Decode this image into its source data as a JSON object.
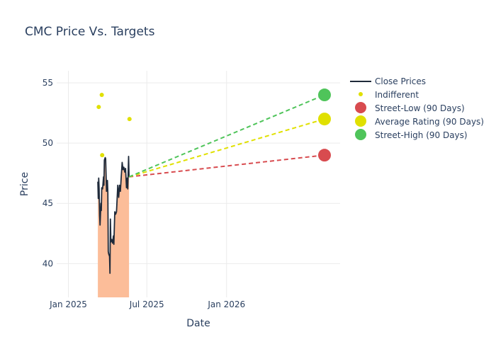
{
  "chart_data": {
    "type": "line",
    "title": "CMC Price Vs. Targets",
    "xlabel": "Date",
    "ylabel": "Price",
    "x_range": [
      "2024-12-05",
      "2026-09-20"
    ],
    "ylim": [
      37.2,
      56.0
    ],
    "x_ticks": [
      {
        "date": "2025-01-01",
        "label": "Jan 2025"
      },
      {
        "date": "2025-07-01",
        "label": "Jul 2025"
      },
      {
        "date": "2026-01-01",
        "label": "Jan 2026"
      }
    ],
    "y_ticks": [
      40,
      45,
      50,
      55
    ],
    "grid": true,
    "legend_position": "right",
    "close_prices": {
      "name": "Close Prices",
      "color": "#1f2a3a",
      "fill_color": "#fcbd99",
      "points": [
        [
          "2025-03-10",
          46.8
        ],
        [
          "2025-03-11",
          45.4
        ],
        [
          "2025-03-12",
          47.1
        ],
        [
          "2025-03-13",
          46.2
        ],
        [
          "2025-03-14",
          44.0
        ],
        [
          "2025-03-15",
          43.2
        ],
        [
          "2025-03-17",
          45.0
        ],
        [
          "2025-03-18",
          44.4
        ],
        [
          "2025-03-19",
          46.3
        ],
        [
          "2025-03-21",
          46.2
        ],
        [
          "2025-03-23",
          47.2
        ],
        [
          "2025-03-24",
          46.5
        ],
        [
          "2025-03-25",
          48.6
        ],
        [
          "2025-03-27",
          48.8
        ],
        [
          "2025-03-28",
          48.7
        ],
        [
          "2025-03-30",
          46.0
        ],
        [
          "2025-04-01",
          46.9
        ],
        [
          "2025-04-02",
          45.9
        ],
        [
          "2025-04-03",
          41.0
        ],
        [
          "2025-04-04",
          40.8
        ],
        [
          "2025-04-06",
          40.6
        ],
        [
          "2025-04-07",
          39.2
        ],
        [
          "2025-04-08",
          43.7
        ],
        [
          "2025-04-09",
          41.8
        ],
        [
          "2025-04-11",
          42.0
        ],
        [
          "2025-04-13",
          41.7
        ],
        [
          "2025-04-15",
          42.3
        ],
        [
          "2025-04-16",
          41.6
        ],
        [
          "2025-04-18",
          44.3
        ],
        [
          "2025-04-20",
          44.1
        ],
        [
          "2025-04-22",
          44.3
        ],
        [
          "2025-04-23",
          45.0
        ],
        [
          "2025-04-25",
          46.5
        ],
        [
          "2025-04-27",
          45.5
        ],
        [
          "2025-04-29",
          46.5
        ],
        [
          "2025-05-01",
          46.0
        ],
        [
          "2025-05-03",
          47.2
        ],
        [
          "2025-05-05",
          48.4
        ],
        [
          "2025-05-07",
          47.8
        ],
        [
          "2025-05-09",
          48.0
        ],
        [
          "2025-05-11",
          47.6
        ],
        [
          "2025-05-13",
          47.9
        ],
        [
          "2025-05-15",
          46.3
        ],
        [
          "2025-05-17",
          47.1
        ],
        [
          "2025-05-18",
          46.2
        ],
        [
          "2025-05-20",
          48.9
        ],
        [
          "2025-05-21",
          47.2
        ]
      ]
    },
    "indifferent": {
      "name": "Indifferent",
      "color": "#e0e000",
      "points": [
        [
          "2025-03-12",
          53.0
        ],
        [
          "2025-03-19",
          54.0
        ],
        [
          "2025-03-20",
          49.0
        ],
        [
          "2025-05-22",
          52.0
        ]
      ]
    },
    "targets": {
      "start": [
        "2025-05-21",
        47.2
      ],
      "end_date": "2026-08-15",
      "series": [
        {
          "name": "Street-Low (90 Days)",
          "color": "#d84b4f",
          "value": 49.0
        },
        {
          "name": "Average Rating (90 Days)",
          "color": "#e0e000",
          "value": 52.0
        },
        {
          "name": "Street-High (90 Days)",
          "color": "#4fc45a",
          "value": 54.0
        }
      ]
    }
  }
}
